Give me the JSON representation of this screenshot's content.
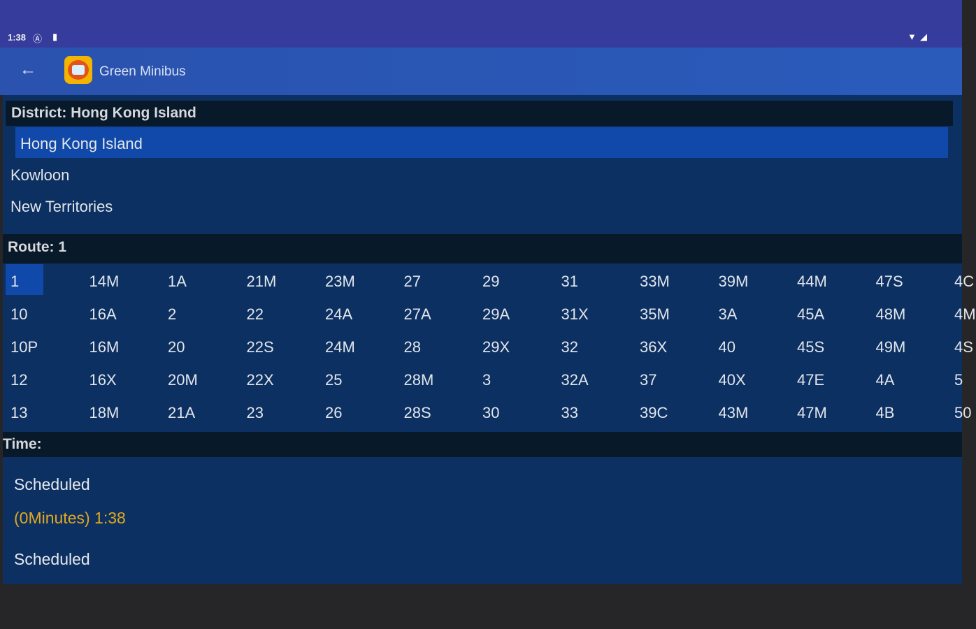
{
  "status_bar": {
    "time": "1:38"
  },
  "app_bar": {
    "title": "Green Minibus"
  },
  "district": {
    "header": "District: Hong Kong Island",
    "options": [
      "Hong Kong Island",
      "Kowloon",
      "New Territories"
    ],
    "selected": 0
  },
  "route": {
    "header": "Route: 1",
    "columns": [
      [
        "1",
        "10",
        "10P",
        "12",
        "13"
      ],
      [
        "14M",
        "16A",
        "16M",
        "16X",
        "18M"
      ],
      [
        "1A",
        "2",
        "20",
        "20M",
        "21A"
      ],
      [
        "21M",
        "22",
        "22S",
        "22X",
        "23"
      ],
      [
        "23M",
        "24A",
        "24M",
        "25",
        "26"
      ],
      [
        "27",
        "27A",
        "28",
        "28M",
        "28S"
      ],
      [
        "29",
        "29A",
        "29X",
        "3",
        "30"
      ],
      [
        "31",
        "31X",
        "32",
        "32A",
        "33"
      ],
      [
        "33M",
        "35M",
        "36X",
        "37",
        "39C"
      ],
      [
        "39M",
        "3A",
        "40",
        "40X",
        "43M"
      ],
      [
        "44M",
        "45A",
        "45S",
        "47E",
        "47M"
      ],
      [
        "47S",
        "48M",
        "49M",
        "4A",
        "4B"
      ],
      [
        "4C",
        "4M",
        "4S",
        "5",
        "50"
      ]
    ]
  },
  "time": {
    "header": "Time:",
    "entries": [
      {
        "label": "Scheduled",
        "detail": "(0Minutes) 1:38"
      },
      {
        "label": "Scheduled"
      }
    ]
  },
  "colors": {
    "accent": "#e0a820",
    "selected": "#1049a9"
  }
}
